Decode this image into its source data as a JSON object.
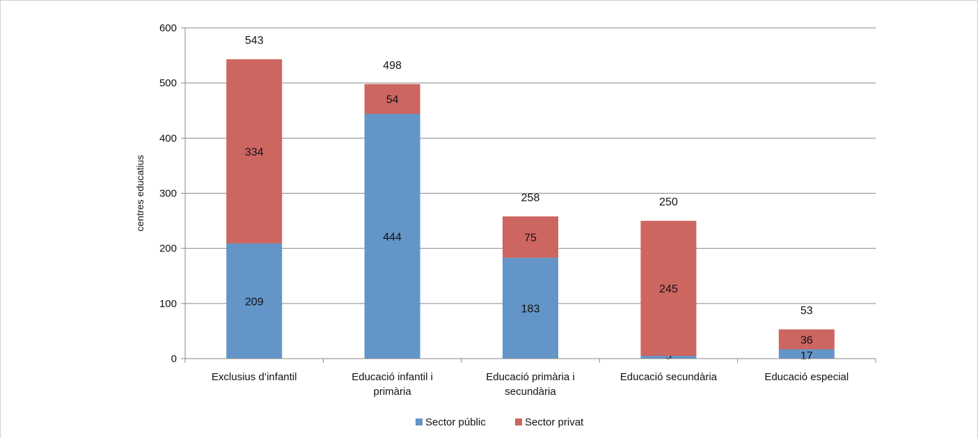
{
  "chart_data": {
    "type": "bar",
    "stacked": true,
    "ylabel": "centres educatius",
    "ylim": [
      0,
      600
    ],
    "yticks": [
      0,
      100,
      200,
      300,
      400,
      500,
      600
    ],
    "grid": true,
    "legend_position": "bottom",
    "categories": [
      [
        "Exclusius d’infantil"
      ],
      [
        "Educació infantil i",
        "primària"
      ],
      [
        "Educació primària i",
        "secundària"
      ],
      [
        "Educació secundària"
      ],
      [
        "Educació especial"
      ]
    ],
    "series": [
      {
        "name": "Sector públic",
        "color": "#6395c8",
        "values": [
          209,
          444,
          183,
          5,
          17
        ]
      },
      {
        "name": "Sector privat",
        "color": "#cd6561",
        "values": [
          334,
          54,
          75,
          245,
          36
        ]
      }
    ],
    "totals": [
      543,
      498,
      258,
      250,
      53
    ]
  }
}
